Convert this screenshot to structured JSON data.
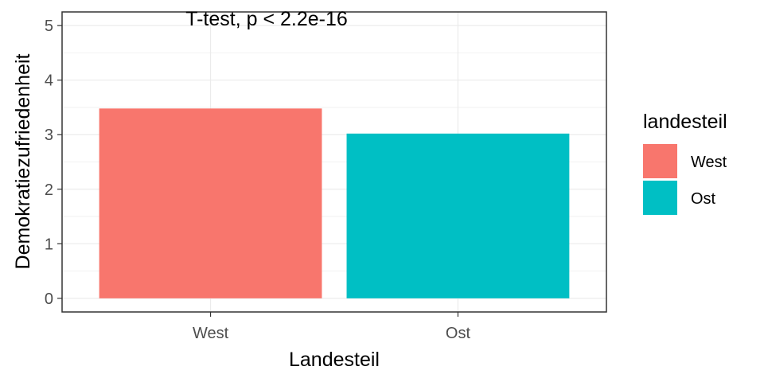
{
  "chart_data": {
    "type": "bar",
    "categories": [
      "West",
      "Ost"
    ],
    "values": [
      3.48,
      3.02
    ],
    "xlabel": "Landesteil",
    "ylabel": "Demokratiezufriedenheit",
    "ylim": [
      -0.25,
      5.25
    ],
    "yticks": [
      0,
      1,
      2,
      3,
      4,
      5
    ],
    "annotation": "T-test, p < 2.2e-16",
    "grid": true,
    "legend": {
      "title": "landesteil",
      "position": "right",
      "entries": [
        "West",
        "Ost"
      ]
    },
    "colors": [
      "#F8766D",
      "#00BFC4"
    ]
  }
}
